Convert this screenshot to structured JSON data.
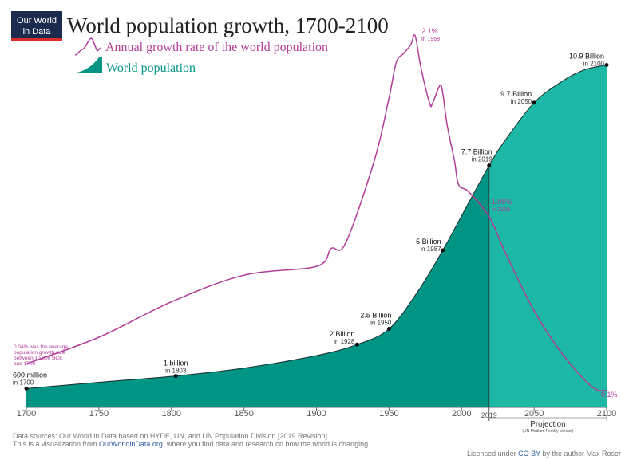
{
  "logo": {
    "line1": "Our World",
    "line2": "in Data",
    "bg_color": "#1a2b4e",
    "underline_color": "#d92b2b"
  },
  "colors": {
    "population_dark": "#009485",
    "population_light": "#1cb7a5",
    "growth": "#b13c99",
    "axis": "#666666"
  },
  "legend": {
    "growth_label": "Annual growth rate of the world population",
    "population_label": "World population"
  },
  "projection": {
    "label": "Projection",
    "sublabel": "(UN Medium Fertility Variant)"
  },
  "footer": {
    "sources": "Data sources: Our World in Data based on HYDE, UN, and UN Population Division [2019 Revision]",
    "viz_prefix": "This is a visualization from ",
    "viz_link": "OurWorldinData.org",
    "viz_suffix": ", where you find data and research on how the world is changing.",
    "license_prefix": "Licensed under ",
    "license_link": "CC-BY",
    "license_suffix": " by the author Max Roser"
  },
  "chart_data": {
    "type": "area",
    "title": "World population growth, 1700-2100",
    "xlim": [
      1700,
      2100
    ],
    "x_ticks": [
      "1700",
      "1750",
      "1800",
      "1850",
      "1900",
      "1950",
      "2000",
      "2050",
      "2100"
    ],
    "x_extra_tick": "2019",
    "projection_start": 2019,
    "series": [
      {
        "name": "World population",
        "unit": "billion",
        "x": [
          1700,
          1750,
          1803,
          1850,
          1900,
          1928,
          1950,
          1970,
          1987,
          2000,
          2019,
          2030,
          2050,
          2070,
          2085,
          2100
        ],
        "y": [
          0.6,
          0.8,
          1.0,
          1.25,
          1.65,
          2.0,
          2.5,
          3.7,
          5.0,
          6.1,
          7.7,
          8.5,
          9.7,
          10.4,
          10.75,
          10.9
        ]
      },
      {
        "name": "Annual growth rate of the world population",
        "unit": "percent",
        "x": [
          1700,
          1750,
          1800,
          1850,
          1900,
          1910,
          1920,
          1940,
          1950,
          1955,
          1960,
          1965,
          1968,
          1972,
          1978,
          1980,
          1985,
          1987,
          1990,
          1995,
          1998,
          2005,
          2019,
          2030,
          2050,
          2070,
          2090,
          2100
        ],
        "y": [
          0.25,
          0.4,
          0.6,
          0.75,
          0.8,
          0.9,
          0.93,
          1.4,
          1.75,
          1.95,
          2.0,
          2.05,
          2.1,
          1.92,
          1.72,
          1.72,
          1.82,
          1.78,
          1.6,
          1.4,
          1.26,
          1.22,
          1.08,
          0.88,
          0.55,
          0.3,
          0.12,
          0.1
        ]
      }
    ],
    "population_labels": [
      {
        "year": 1700,
        "value": "600 million",
        "sub": "in 1700",
        "value_y": 0.6
      },
      {
        "year": 1803,
        "value": "1 billion",
        "sub": "in 1803",
        "value_y": 1.0
      },
      {
        "year": 1928,
        "value": "2 Billion",
        "sub": "in 1928",
        "value_y": 2.0
      },
      {
        "year": 1950,
        "value": "2.5 Billion",
        "sub": "in 1950",
        "value_y": 2.5
      },
      {
        "year": 1987,
        "value": "5 Billion",
        "sub": "in 1987",
        "value_y": 5.0
      },
      {
        "year": 2019,
        "value": "7.7 Billion",
        "sub": "in 2019",
        "value_y": 7.7
      },
      {
        "year": 2050,
        "value": "9.7 Billion",
        "sub": "in 2050",
        "value_y": 9.7
      },
      {
        "year": 2100,
        "value": "10.9 Billion",
        "sub": "in 2100",
        "value_y": 10.9
      }
    ],
    "growth_labels": [
      {
        "year": 1968,
        "value": "2.1%",
        "sub": "in 1968"
      },
      {
        "year": 2019,
        "value": "1.08%",
        "sub": "in 2019"
      },
      {
        "year": 2100,
        "value": "0.1%",
        "sub": ""
      }
    ],
    "note": [
      "0.04% was the average",
      "population growth rate",
      "between 10,000 BCE",
      "and 1700"
    ]
  }
}
